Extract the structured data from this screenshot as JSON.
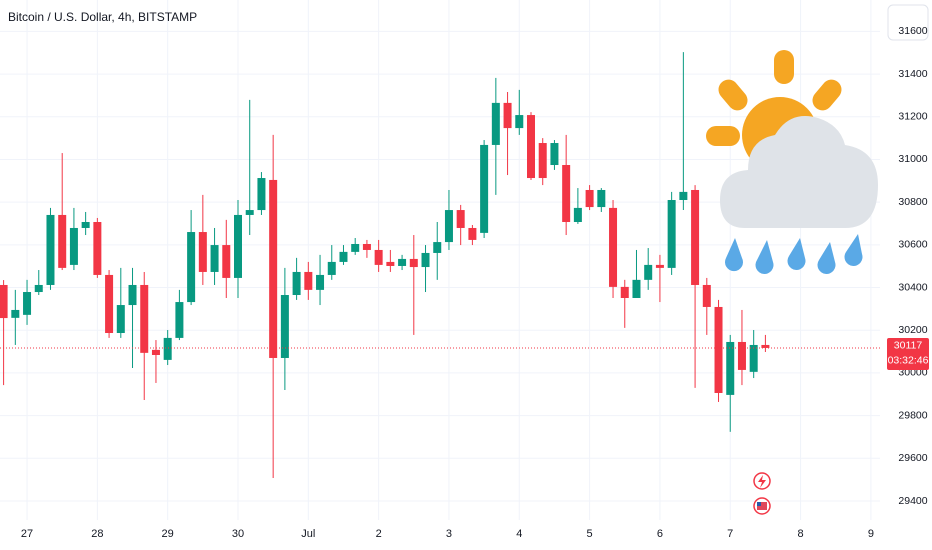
{
  "chart_data": {
    "type": "candlestick",
    "title": "Bitcoin / U.S. Dollar, 4h, BITSTAMP",
    "categories": [
      null,
      null,
      "27",
      null,
      null,
      null,
      null,
      null,
      "28",
      null,
      null,
      null,
      null,
      null,
      "29",
      null,
      null,
      null,
      null,
      null,
      "30",
      null,
      null,
      null,
      null,
      null,
      "Jul",
      null,
      null,
      null,
      null,
      null,
      "2",
      null,
      null,
      null,
      null,
      null,
      "3",
      null,
      null,
      null,
      null,
      null,
      "4",
      null,
      null,
      null,
      null,
      null,
      "5",
      null,
      null,
      null,
      null,
      null,
      "6",
      null,
      null,
      null,
      null,
      null,
      "7",
      null,
      null,
      null,
      null,
      null,
      "8",
      null,
      null,
      null,
      null,
      null,
      "9"
    ],
    "open": [
      30412,
      30258,
      30272,
      30379,
      30412,
      30740,
      30506,
      30679,
      30707,
      30459,
      30187,
      30318,
      30412,
      30108,
      30061,
      30164,
      30332,
      30660,
      30473,
      30599,
      30445,
      30740,
      30763,
      30904,
      30070,
      30365,
      30473,
      30389,
      30459,
      30520,
      30567,
      30604,
      30576,
      30520,
      30501,
      30534,
      30496,
      30562,
      30613,
      30763,
      30679,
      30656,
      31068,
      31265,
      31147,
      31208,
      31077,
      30974,
      30974,
      30707,
      30857,
      30777,
      30773,
      30403,
      30351,
      30436,
      30506,
      30492,
      30810,
      30857,
      30412,
      30309,
      29897,
      30145,
      30005,
      30131,
      null,
      null,
      null,
      null,
      null,
      null,
      null,
      null,
      null
    ],
    "high": [
      30435,
      30389,
      30436,
      30482,
      30773,
      31030,
      30773,
      30754,
      30726,
      30482,
      30492,
      30492,
      30473,
      30154,
      30201,
      30389,
      30763,
      30834,
      30679,
      30717,
      30810,
      31279,
      30941,
      31115,
      30492,
      30539,
      30520,
      30553,
      30599,
      30599,
      30632,
      30623,
      30623,
      30576,
      30553,
      30646,
      30599,
      30707,
      30857,
      30787,
      30693,
      31091,
      31382,
      31316,
      31326,
      31222,
      31100,
      31091,
      31115,
      30866,
      30880,
      30866,
      30810,
      30436,
      30576,
      30585,
      30553,
      30848,
      31503,
      30880,
      30445,
      30342,
      30178,
      30295,
      30201,
      30178,
      null,
      null,
      null,
      null,
      null,
      null,
      null,
      null,
      null
    ],
    "low": [
      29943,
      30131,
      30225,
      30365,
      30389,
      30482,
      30482,
      30646,
      30445,
      30164,
      30164,
      30023,
      29873,
      29953,
      30037,
      30154,
      30318,
      30412,
      30412,
      30351,
      30351,
      30646,
      30740,
      29508,
      29920,
      30342,
      30342,
      30318,
      30436,
      30506,
      30553,
      30539,
      30473,
      30473,
      30482,
      30178,
      30379,
      30436,
      30576,
      30599,
      30599,
      30632,
      30834,
      30927,
      31115,
      30904,
      30880,
      30951,
      30646,
      30698,
      30763,
      30754,
      30351,
      30211,
      30351,
      30389,
      30332,
      30459,
      30763,
      29930,
      30178,
      29864,
      29724,
      29943,
      29976,
      30098,
      null,
      null,
      null,
      null,
      null,
      null,
      null,
      null,
      null
    ],
    "close": [
      30257,
      30295,
      30379,
      30412,
      30740,
      30492,
      30679,
      30707,
      30459,
      30187,
      30318,
      30412,
      30094,
      30084,
      30164,
      30332,
      30660,
      30473,
      30599,
      30445,
      30740,
      30763,
      30913,
      30070,
      30365,
      30473,
      30389,
      30459,
      30520,
      30567,
      30604,
      30576,
      30506,
      30501,
      30534,
      30496,
      30562,
      30613,
      30763,
      30679,
      30623,
      31068,
      31265,
      31147,
      31208,
      30913,
      30913,
      31077,
      30707,
      30773,
      30777,
      30857,
      30403,
      30351,
      30436,
      30506,
      30492,
      30810,
      30848,
      30412,
      30309,
      29906,
      30145,
      30014,
      30131,
      30117,
      null,
      null,
      null,
      null,
      null,
      null,
      null,
      null,
      null
    ],
    "countdown": "03:32:46",
    "up_color": "#089981",
    "down_color": "#f23645",
    "ylim": [
      29311,
      31747
    ],
    "yticks": [
      29400,
      29600,
      29800,
      30000,
      30200,
      30400,
      30600,
      30800,
      31000,
      31200,
      31400,
      31600
    ],
    "grid": true
  }
}
